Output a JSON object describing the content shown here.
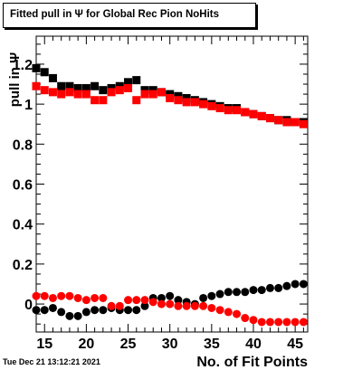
{
  "title": "Fitted pull in  Ψ  for Global Rec Pion NoHits",
  "timestamp": "Tue Dec 21 13:12:21 2021",
  "colors": {
    "black": "#000000",
    "red": "#ff0000"
  },
  "chart_data": {
    "type": "scatter",
    "title": "Fitted pull in  Ψ  for Global Rec Pion NoHits",
    "xlabel": "No. of Fit Points",
    "ylabel": "pull in Ψ",
    "xlim": [
      14,
      46.5
    ],
    "ylim": [
      -0.14,
      1.34
    ],
    "xticks": [
      15,
      20,
      25,
      30,
      35,
      40,
      45
    ],
    "xtick_labels": [
      "15",
      "20",
      "25",
      "30",
      "35",
      "40",
      "45"
    ],
    "yticks": [
      0,
      0.2,
      0.4,
      0.6,
      0.8,
      1,
      1.2
    ],
    "ytick_labels": [
      "0",
      "0.2",
      "0.4",
      "0.6",
      "0.8",
      "1",
      "1.2"
    ],
    "x": [
      14,
      15,
      16,
      17,
      18,
      19,
      20,
      21,
      22,
      23,
      24,
      25,
      26,
      27,
      28,
      29,
      30,
      31,
      32,
      33,
      34,
      35,
      36,
      37,
      38,
      39,
      40,
      41,
      42,
      43,
      44,
      45,
      46
    ],
    "series": [
      {
        "marker": "square",
        "color": "#000000",
        "values": [
          1.18,
          1.16,
          1.13,
          1.09,
          1.09,
          1.08,
          1.08,
          1.09,
          1.07,
          1.08,
          1.09,
          1.11,
          1.12,
          1.07,
          1.07,
          1.06,
          1.05,
          1.04,
          1.03,
          1.02,
          1.01,
          1.0,
          0.99,
          0.98,
          0.98,
          0.96,
          0.95,
          0.94,
          0.93,
          0.92,
          0.92,
          0.91,
          0.91
        ]
      },
      {
        "marker": "square",
        "color": "#ff0000",
        "values": [
          1.09,
          1.07,
          1.06,
          1.05,
          1.06,
          1.05,
          1.05,
          1.02,
          1.02,
          1.06,
          1.07,
          1.08,
          1.02,
          1.05,
          1.05,
          1.06,
          1.03,
          1.02,
          1.01,
          1.01,
          1.0,
          0.99,
          0.98,
          0.97,
          0.97,
          0.96,
          0.95,
          0.94,
          0.93,
          0.92,
          0.91,
          0.91,
          0.9
        ]
      },
      {
        "marker": "circle",
        "color": "#000000",
        "values": [
          -0.03,
          -0.03,
          -0.02,
          -0.04,
          -0.06,
          -0.06,
          -0.04,
          -0.03,
          -0.03,
          -0.02,
          -0.03,
          -0.03,
          -0.03,
          -0.01,
          0.03,
          0.03,
          0.04,
          0.02,
          0.01,
          0.0,
          0.03,
          0.04,
          0.05,
          0.06,
          0.06,
          0.06,
          0.07,
          0.07,
          0.08,
          0.08,
          0.09,
          0.1,
          0.1
        ]
      },
      {
        "marker": "circle",
        "color": "#ff0000",
        "values": [
          0.04,
          0.04,
          0.03,
          0.04,
          0.04,
          0.03,
          0.02,
          0.03,
          0.03,
          -0.01,
          -0.01,
          0.02,
          0.02,
          0.02,
          0.01,
          0.0,
          0.0,
          -0.01,
          -0.01,
          -0.01,
          -0.01,
          -0.02,
          -0.03,
          -0.04,
          -0.05,
          -0.07,
          -0.08,
          -0.09,
          -0.09,
          -0.09,
          -0.09,
          -0.09,
          -0.09
        ]
      }
    ]
  }
}
